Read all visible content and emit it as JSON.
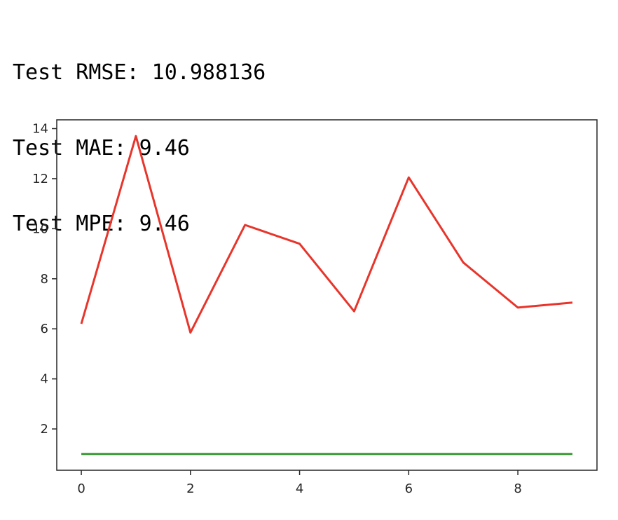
{
  "output": {
    "lines": [
      "Test RMSE: 10.988136",
      "Test MAE: 9.46",
      "Test MPE: 9.46"
    ]
  },
  "chart_data": {
    "type": "line",
    "title": "",
    "xlabel": "",
    "ylabel": "",
    "x": [
      0,
      1,
      2,
      3,
      4,
      5,
      6,
      7,
      8,
      9
    ],
    "xlim": [
      -0.45,
      9.45
    ],
    "ylim": [
      0.35,
      14.35
    ],
    "xticks": [
      0,
      2,
      4,
      6,
      8
    ],
    "yticks": [
      2,
      4,
      6,
      8,
      10,
      12,
      14
    ],
    "grid": false,
    "legend": "none",
    "series": [
      {
        "color": "#e8352b",
        "values": [
          6.2,
          13.7,
          5.85,
          10.15,
          9.4,
          6.7,
          12.05,
          8.65,
          6.85,
          7.05
        ]
      },
      {
        "color": "#3a9a36",
        "values": [
          1,
          1,
          1,
          1,
          1,
          1,
          1,
          1,
          1,
          1
        ]
      }
    ]
  }
}
